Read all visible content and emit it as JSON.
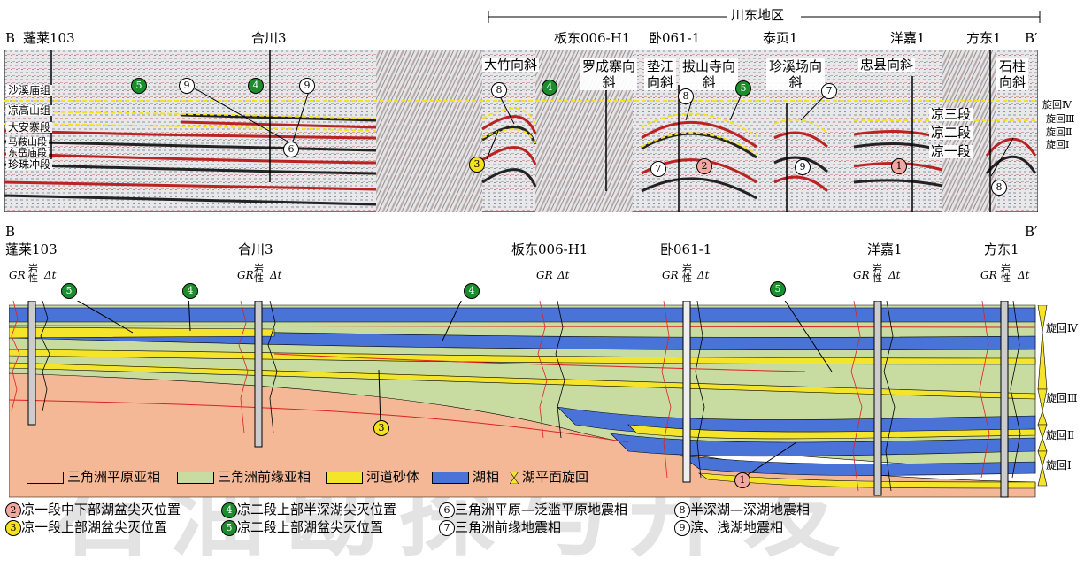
{
  "top_panel": {
    "region_label": "川东地区",
    "section_start": "B",
    "section_end": "B′",
    "wells": [
      "蓬莱103",
      "合川3",
      "板东006-H1",
      "卧061-1",
      "泰页1",
      "洋嘉1",
      "方东1"
    ],
    "formations": [
      "沙溪庙组",
      "凉高山组",
      "大安寨段",
      "马鞍山段",
      "东岳庙段",
      "珍珠冲段"
    ],
    "synclines": [
      "大竹向斜",
      "罗成寨向斜",
      "垫江向斜",
      "拔山寺向斜",
      "珍溪场向斜",
      "忠县向斜",
      "石柱向斜"
    ],
    "members": [
      "凉三段",
      "凉二段",
      "凉一段"
    ],
    "cycles": [
      "旋回Ⅳ",
      "旋回Ⅲ",
      "旋回Ⅱ",
      "旋回Ⅰ"
    ]
  },
  "bottom_panel": {
    "section_start": "B",
    "section_end": "B′",
    "wells": [
      "蓬莱103",
      "合川3",
      "板东006-H1",
      "卧061-1",
      "洋嘉1",
      "方东1"
    ],
    "log_labels": {
      "gr": "GR",
      "lith": "岩性",
      "dt": "Δt"
    },
    "cycles": [
      "旋回Ⅳ",
      "旋回Ⅲ",
      "旋回Ⅱ",
      "旋回Ⅰ"
    ]
  },
  "legend": {
    "swatches": [
      {
        "label": "三角洲平原亚相",
        "color": "#f4b896"
      },
      {
        "label": "三角洲前缘亚相",
        "color": "#c8dba0"
      },
      {
        "label": "河道砂体",
        "color": "#f5e52a"
      },
      {
        "label": "湖相",
        "color": "#4a73d8"
      },
      {
        "label": "湖平面旋回",
        "color": "#f5e52a"
      }
    ],
    "markers": [
      {
        "num": "②",
        "text": "凉一段中下部湖盆尖灭位置",
        "style": "p"
      },
      {
        "num": "③",
        "text": "凉一段上部湖盆尖灭位置",
        "style": "y"
      },
      {
        "num": "④",
        "text": "凉二段上部半深湖尖灭位置",
        "style": "g"
      },
      {
        "num": "⑤",
        "text": "凉二段上部湖盆尖灭位置",
        "style": "g"
      },
      {
        "num": "⑥",
        "text": "三角洲平原—泛滥平原地震相",
        "style": "w"
      },
      {
        "num": "⑦",
        "text": "三角洲前缘地震相",
        "style": "w"
      },
      {
        "num": "⑧",
        "text": "半深湖—深湖地震相",
        "style": "w"
      },
      {
        "num": "⑨",
        "text": "滨、浅湖地震相",
        "style": "w"
      }
    ]
  },
  "watermark": "石油勘探与开发"
}
